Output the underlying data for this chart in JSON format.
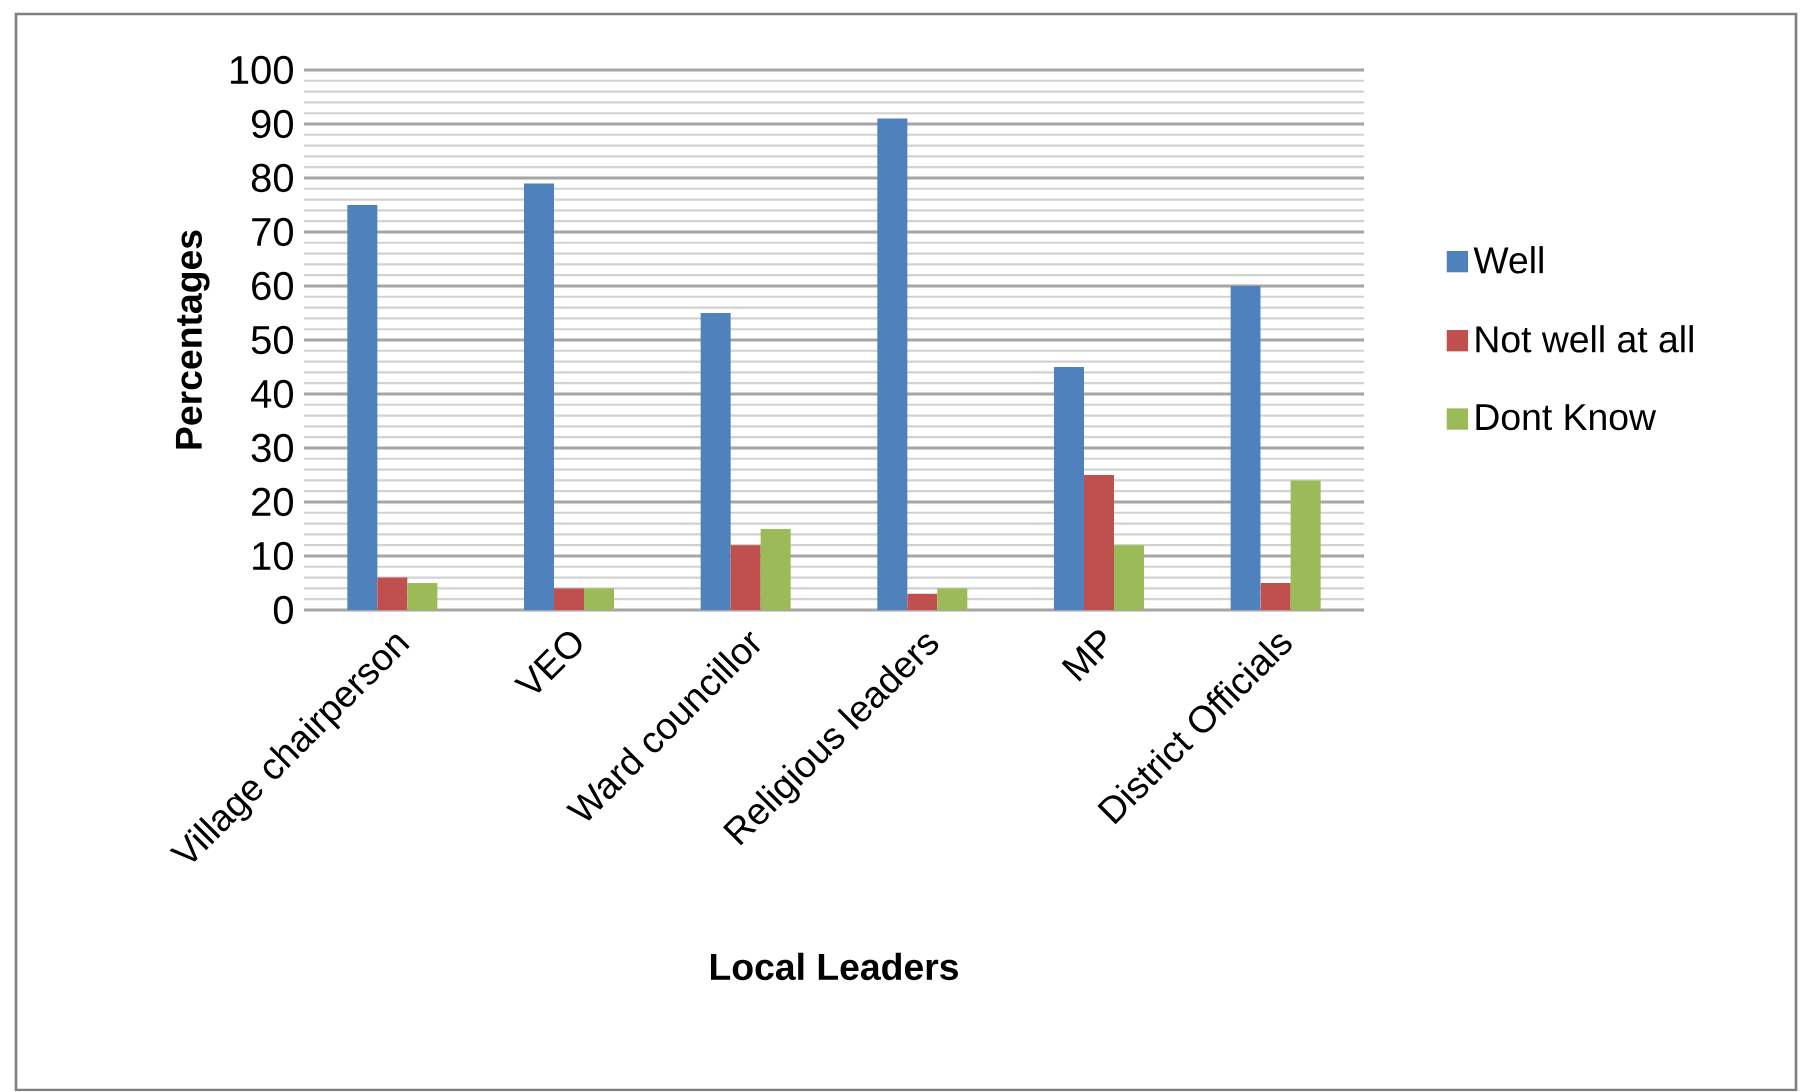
{
  "chart_data": {
    "type": "bar",
    "xlabel": "Local Leaders",
    "ylabel": "Percentages",
    "categories": [
      "Village chairperson",
      "VEO",
      "Ward councillor",
      "Religious leaders",
      "MP",
      "District Officials"
    ],
    "series": [
      {
        "name": "Well",
        "color": "#4f81bd",
        "values": [
          75,
          79,
          55,
          91,
          45,
          60
        ]
      },
      {
        "name": "Not well at all",
        "color": "#c0504d",
        "values": [
          6,
          4,
          12,
          3,
          25,
          5
        ]
      },
      {
        "name": "Dont Know",
        "color": "#9bbb59",
        "values": [
          5,
          4,
          15,
          4,
          12,
          24
        ]
      }
    ],
    "ylim": [
      0,
      100
    ],
    "yticks": [
      0,
      10,
      20,
      30,
      40,
      50,
      60,
      70,
      80,
      90,
      100
    ],
    "grid": "y",
    "legend": "right"
  }
}
